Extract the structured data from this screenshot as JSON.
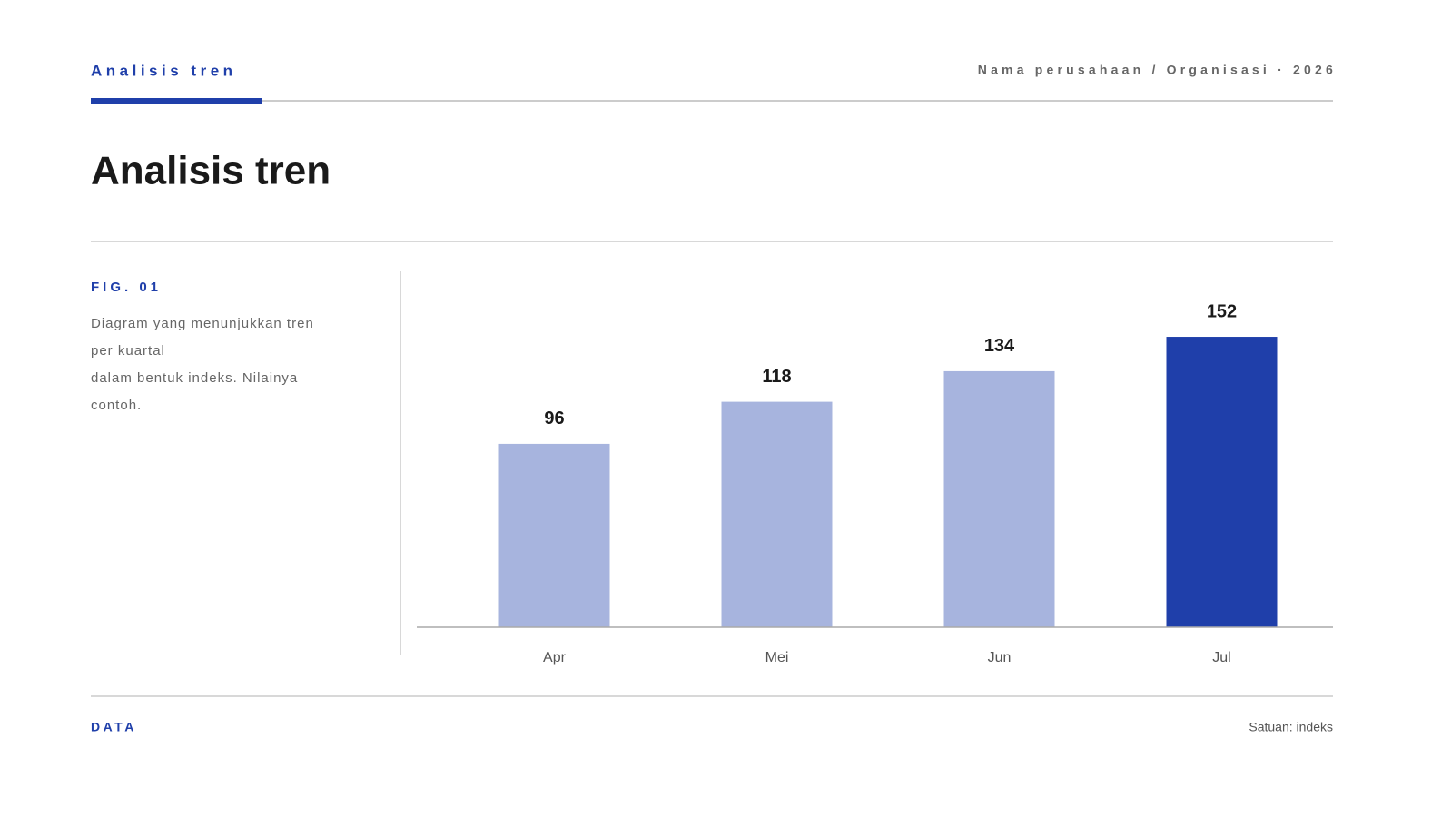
{
  "header": {
    "kicker": "Analisis tren",
    "organization": "Nama perusahaan / Organisasi · 2026",
    "title": "Analisis tren"
  },
  "sidebar": {
    "figure_label": "FIG. 01",
    "description_lines": [
      "Diagram yang menunjukkan tren",
      "per kuartal",
      "dalam bentuk indeks. Nilainya",
      "contoh."
    ]
  },
  "chart_data": {
    "type": "bar",
    "categories": [
      "Apr",
      "Mei",
      "Jun",
      "Jul"
    ],
    "values": [
      96,
      118,
      134,
      152
    ],
    "colors": [
      "#a7b4de",
      "#a7b4de",
      "#a7b4de",
      "#1f3faa"
    ]
  },
  "footer": {
    "left": "DATA",
    "right": "Satuan: indeks"
  }
}
